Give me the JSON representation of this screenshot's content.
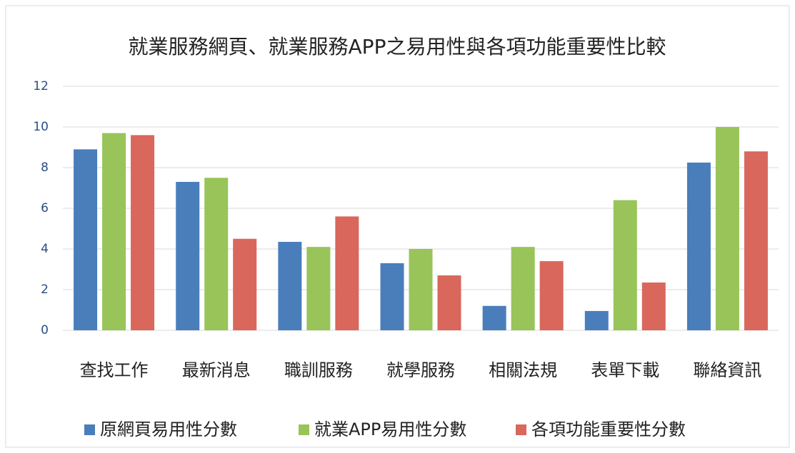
{
  "chart_data": {
    "type": "bar",
    "title": "就業服務網頁、就業服務APP之易用性與各項功能重要性比較",
    "categories": [
      "查找工作",
      "最新消息",
      "職訓服務",
      "就學服務",
      "相關法規",
      "表單下載",
      "聯絡資訊"
    ],
    "series": [
      {
        "name": "原網頁易用性分數",
        "color": "#4a7ebb",
        "values": [
          8.9,
          7.3,
          4.35,
          3.3,
          1.2,
          0.95,
          8.25
        ]
      },
      {
        "name": "就業APP易用性分數",
        "color": "#98c459",
        "values": [
          9.7,
          7.5,
          4.1,
          4.0,
          4.1,
          6.4,
          10.0
        ]
      },
      {
        "name": "各項功能重要性分數",
        "color": "#d9675c",
        "values": [
          9.6,
          4.5,
          5.6,
          2.7,
          3.4,
          2.35,
          8.8
        ]
      }
    ],
    "ylim": [
      0,
      12
    ],
    "yticks": [
      0,
      2,
      4,
      6,
      8,
      10,
      12
    ],
    "grid": true,
    "legend": "bottom"
  }
}
